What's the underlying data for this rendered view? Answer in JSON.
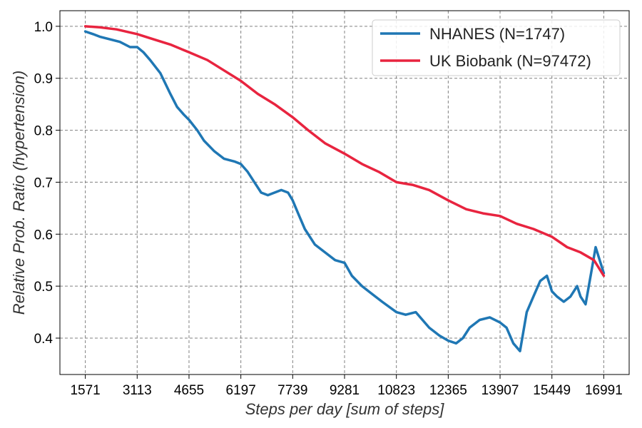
{
  "chart_data": {
    "type": "line",
    "xlabel": "Steps per day [sum of steps]",
    "ylabel": "Relative Prob. Ratio (hypertension)",
    "xlim": [
      1571,
      16991
    ],
    "ylim": [
      0.33,
      1.03
    ],
    "x_ticks": [
      1571,
      3113,
      4655,
      6197,
      7739,
      9281,
      10823,
      12365,
      13907,
      15449,
      16991
    ],
    "y_ticks": [
      0.4,
      0.5,
      0.6,
      0.7,
      0.8,
      0.9,
      1.0
    ],
    "x_tick_labels": [
      "1571",
      "3113",
      "4655",
      "6197",
      "7739",
      "9281",
      "10823",
      "12365",
      "13907",
      "15449",
      "16991"
    ],
    "y_tick_labels": [
      "0.4",
      "0.5",
      "0.6",
      "0.7",
      "0.8",
      "0.9",
      "1.0"
    ],
    "grid": true,
    "legend_position": "top-right",
    "series": [
      {
        "name": "NHANES (N=1747)",
        "color": "#1f77b4",
        "x": [
          1571,
          1800,
          2000,
          2300,
          2600,
          2900,
          3113,
          3300,
          3500,
          3800,
          4100,
          4300,
          4500,
          4655,
          4900,
          5100,
          5400,
          5700,
          6000,
          6197,
          6400,
          6600,
          6800,
          7000,
          7200,
          7400,
          7600,
          7739,
          7900,
          8100,
          8400,
          8700,
          9000,
          9281,
          9500,
          9800,
          10100,
          10400,
          10823,
          11100,
          11400,
          11800,
          12100,
          12365,
          12600,
          12800,
          13000,
          13300,
          13600,
          13907,
          14100,
          14300,
          14500,
          14700,
          14900,
          15100,
          15300,
          15449,
          15600,
          15800,
          16000,
          16200,
          16300,
          16450,
          16600,
          16750,
          16991
        ],
        "y": [
          0.99,
          0.985,
          0.98,
          0.975,
          0.97,
          0.96,
          0.96,
          0.95,
          0.935,
          0.91,
          0.87,
          0.845,
          0.83,
          0.82,
          0.8,
          0.78,
          0.76,
          0.745,
          0.74,
          0.735,
          0.72,
          0.7,
          0.68,
          0.675,
          0.68,
          0.685,
          0.68,
          0.665,
          0.64,
          0.61,
          0.58,
          0.565,
          0.55,
          0.545,
          0.52,
          0.5,
          0.485,
          0.47,
          0.45,
          0.445,
          0.45,
          0.42,
          0.405,
          0.395,
          0.39,
          0.4,
          0.42,
          0.435,
          0.44,
          0.43,
          0.42,
          0.39,
          0.375,
          0.45,
          0.48,
          0.51,
          0.52,
          0.49,
          0.48,
          0.47,
          0.48,
          0.5,
          0.48,
          0.465,
          0.52,
          0.575,
          0.525
        ]
      },
      {
        "name": "UK Biobank (N=97472)",
        "color": "#e8243f",
        "x": [
          1571,
          2000,
          2500,
          3113,
          3600,
          4100,
          4655,
          5200,
          5700,
          6197,
          6700,
          7200,
          7739,
          8200,
          8700,
          9281,
          9800,
          10300,
          10823,
          11300,
          11800,
          12365,
          12900,
          13400,
          13907,
          14400,
          14900,
          15449,
          15900,
          16300,
          16700,
          16991
        ],
        "y": [
          1.0,
          0.998,
          0.994,
          0.985,
          0.975,
          0.965,
          0.95,
          0.935,
          0.915,
          0.895,
          0.87,
          0.85,
          0.825,
          0.8,
          0.775,
          0.755,
          0.735,
          0.72,
          0.7,
          0.695,
          0.685,
          0.665,
          0.648,
          0.64,
          0.635,
          0.62,
          0.61,
          0.595,
          0.575,
          0.565,
          0.55,
          0.52
        ]
      }
    ]
  }
}
